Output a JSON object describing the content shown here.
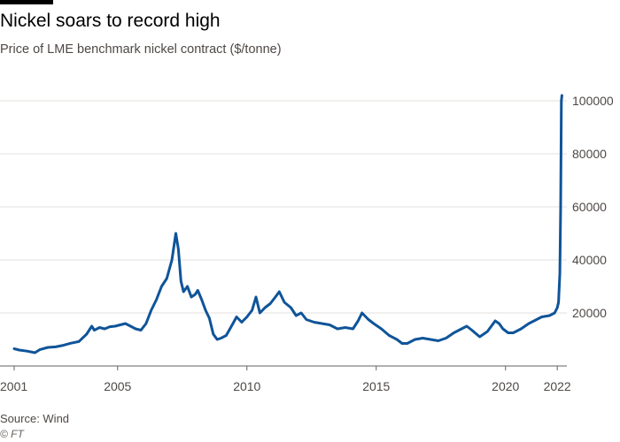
{
  "chart_data": {
    "type": "line",
    "title": "Nickel soars to record high",
    "subtitle": "Price of LME benchmark nickel contract ($/tonne)",
    "source": "Source: Wind",
    "credit": "© FT",
    "xlabel": "",
    "ylabel": "",
    "x_ticks": [
      "2001",
      "2005",
      "2010",
      "2015",
      "2020",
      "2022"
    ],
    "y_ticks": [
      "20000",
      "40000",
      "60000",
      "80000",
      "100000"
    ],
    "xlim": [
      2001.0,
      2022.2
    ],
    "ylim": [
      0,
      102000
    ],
    "color": "#0f5499",
    "series": [
      {
        "name": "LME nickel",
        "x": [
          2001.0,
          2001.2,
          2001.5,
          2001.8,
          2002.0,
          2002.3,
          2002.6,
          2002.9,
          2003.2,
          2003.5,
          2003.8,
          2004.0,
          2004.1,
          2004.3,
          2004.5,
          2004.7,
          2004.9,
          2005.1,
          2005.3,
          2005.5,
          2005.7,
          2005.9,
          2006.1,
          2006.3,
          2006.5,
          2006.7,
          2006.9,
          2007.1,
          2007.25,
          2007.35,
          2007.45,
          2007.55,
          2007.7,
          2007.85,
          2008.0,
          2008.1,
          2008.25,
          2008.4,
          2008.55,
          2008.7,
          2008.85,
          2009.0,
          2009.2,
          2009.4,
          2009.6,
          2009.8,
          2010.0,
          2010.2,
          2010.35,
          2010.5,
          2010.7,
          2010.9,
          2011.1,
          2011.25,
          2011.45,
          2011.7,
          2011.9,
          2012.1,
          2012.3,
          2012.6,
          2012.9,
          2013.2,
          2013.5,
          2013.8,
          2014.1,
          2014.3,
          2014.45,
          2014.7,
          2014.9,
          2015.2,
          2015.5,
          2015.8,
          2016.0,
          2016.2,
          2016.5,
          2016.8,
          2017.1,
          2017.4,
          2017.7,
          2018.0,
          2018.3,
          2018.5,
          2018.7,
          2019.0,
          2019.3,
          2019.6,
          2019.75,
          2019.9,
          2020.1,
          2020.3,
          2020.6,
          2020.9,
          2021.1,
          2021.4,
          2021.7,
          2021.9,
          2022.0,
          2022.05,
          2022.1,
          2022.13,
          2022.16,
          2022.18
        ],
        "values": [
          6500,
          6000,
          5600,
          5000,
          6200,
          7000,
          7200,
          7800,
          8600,
          9200,
          12000,
          15000,
          13500,
          14500,
          14000,
          14800,
          15000,
          15500,
          16000,
          15000,
          14000,
          13500,
          16000,
          21000,
          25000,
          30000,
          33000,
          40000,
          50000,
          44000,
          32000,
          28000,
          30000,
          26000,
          27000,
          28500,
          25000,
          21000,
          18000,
          12000,
          10000,
          10500,
          11500,
          15000,
          18500,
          16500,
          18500,
          21000,
          26000,
          20000,
          22000,
          23500,
          26000,
          28000,
          24000,
          22000,
          19000,
          20000,
          17500,
          16500,
          16000,
          15500,
          14000,
          14500,
          14000,
          17000,
          20000,
          17500,
          16000,
          14000,
          11500,
          10000,
          8500,
          8500,
          10000,
          10500,
          10000,
          9500,
          10500,
          12500,
          14000,
          15000,
          13500,
          11000,
          13000,
          17000,
          16000,
          14000,
          12500,
          12500,
          14000,
          16000,
          17000,
          18500,
          19000,
          20000,
          22000,
          24000,
          35000,
          60000,
          100000,
          102000
        ]
      }
    ]
  }
}
